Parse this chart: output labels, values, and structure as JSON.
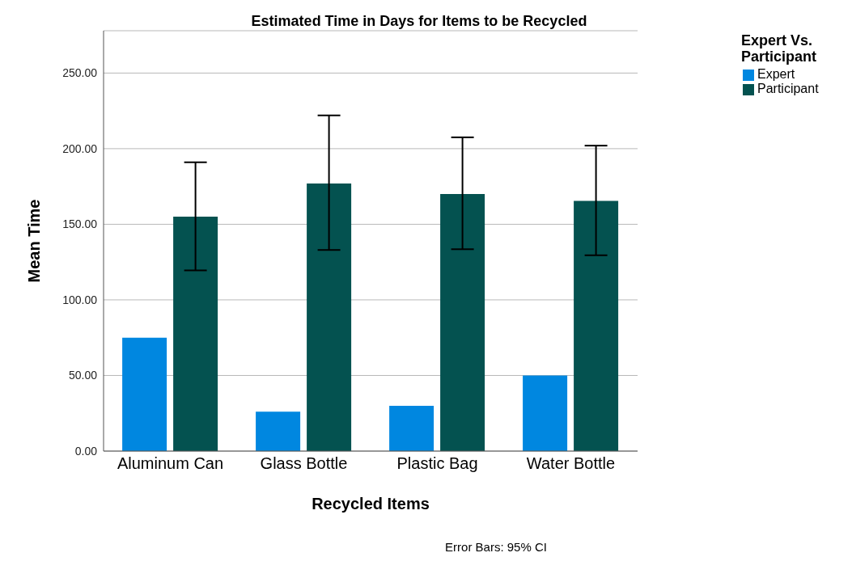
{
  "chart_data": {
    "type": "bar",
    "title": "Estimated Time in Days for Items to be Recycled",
    "xlabel": "Recycled Items",
    "ylabel": "Mean Time",
    "legend_title": "Expert Vs. Participant",
    "categories": [
      "Aluminum Can",
      "Glass Bottle",
      "Plastic Bag",
      "Water Bottle"
    ],
    "series": [
      {
        "name": "Expert",
        "color": "#0087e0",
        "values": [
          75,
          26,
          30,
          50
        ]
      },
      {
        "name": "Participant",
        "color": "#045250",
        "values": [
          155,
          177,
          170,
          165.5
        ],
        "errors": [
          [
            119.5,
            191
          ],
          [
            133,
            222
          ],
          [
            133.5,
            207.5
          ],
          [
            129.5,
            202
          ]
        ]
      }
    ],
    "ylim": [
      0,
      278
    ],
    "yticks": [
      {
        "value": 0,
        "label": "0.00"
      },
      {
        "value": 50,
        "label": "50.00"
      },
      {
        "value": 100,
        "label": "100.00"
      },
      {
        "value": 150,
        "label": "150.00"
      },
      {
        "value": 200,
        "label": "200.00"
      },
      {
        "value": 250,
        "label": "250.00"
      }
    ],
    "grid": "y",
    "legend": "top right",
    "annotations": [
      "Error Bars: 95% CI"
    ]
  }
}
